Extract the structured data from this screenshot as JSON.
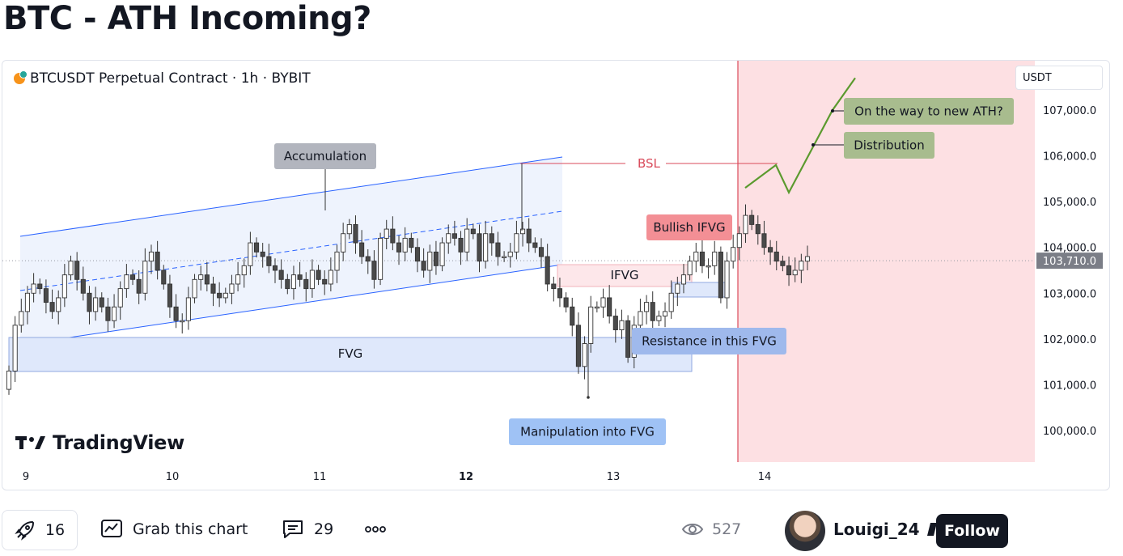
{
  "page": {
    "title": "BTC - ATH Incoming?"
  },
  "chart": {
    "symbol_line": "BTCUSDT Perpetual Contract · 1h · BYBIT",
    "currency": "USDT",
    "logo_text": "TradingView",
    "price_labels": [
      "107,000.0",
      "106,000.0",
      "105,000.0",
      "104,000.0",
      "103,000.0",
      "102,000.0",
      "101,000.0",
      "100,000.0"
    ],
    "current_price": "103,710.0",
    "date_labels": [
      {
        "label": "9",
        "bold": false
      },
      {
        "label": "10",
        "bold": false
      },
      {
        "label": "11",
        "bold": false
      },
      {
        "label": "12",
        "bold": true
      },
      {
        "label": "13",
        "bold": false
      },
      {
        "label": "14",
        "bold": false
      }
    ],
    "annotations": {
      "accumulation": "Accumulation",
      "bsl": "BSL",
      "bullish_ifvg": "Bullish IFVG",
      "ifvg": "IFVG",
      "fvg": "FVG",
      "resistance": "Resistance in this FVG",
      "manipulation": "Manipulation into FVG",
      "on_the_way": "On the way to new ATH?",
      "distribution": "Distribution"
    },
    "colors": {
      "up_candle": "#ffffff",
      "down_candle": "#4a4a4a",
      "channel_line": "#2962ff",
      "projection": "#5b9a2e",
      "future_zone": "#fde0e3",
      "bsl": "#d94a5a"
    }
  },
  "chart_data": {
    "type": "candlestick",
    "title": "BTCUSDT Perpetual Contract · 1h · BYBIT",
    "y_unit": "USDT",
    "ylim": [
      99500,
      108000
    ],
    "x_ticks": [
      "9",
      "10",
      "11",
      "12",
      "13",
      "14"
    ],
    "closes": [
      101300,
      102300,
      102600,
      103000,
      103200,
      103100,
      102800,
      102600,
      102900,
      103400,
      103700,
      103300,
      103000,
      102600,
      102900,
      102700,
      102400,
      102700,
      103100,
      103400,
      103300,
      103000,
      103700,
      103900,
      103500,
      103200,
      102700,
      102400,
      102400,
      102900,
      103300,
      103400,
      103200,
      103000,
      102900,
      103000,
      103200,
      103400,
      103600,
      104100,
      103900,
      103800,
      103600,
      103500,
      103300,
      103100,
      103400,
      103300,
      103100,
      103500,
      103300,
      103200,
      103500,
      103900,
      104300,
      104500,
      104100,
      103800,
      103700,
      103300,
      104200,
      104400,
      104100,
      103900,
      104200,
      104000,
      103700,
      103500,
      103900,
      103600,
      104100,
      104300,
      104200,
      103900,
      104400,
      104300,
      103700,
      104300,
      104100,
      103800,
      103800,
      103900,
      104300,
      104400,
      104100,
      104000,
      103800,
      103200,
      103100,
      102900,
      102700,
      102300,
      101400,
      101900,
      102700,
      102700,
      102900,
      102500,
      102200,
      102400,
      101600,
      102300,
      102600,
      102800,
      102400,
      102500,
      102600,
      103000,
      103200,
      103400,
      103700,
      103900,
      103600,
      103600,
      103900,
      102900,
      103700,
      104000,
      104300,
      104700,
      104500,
      104300,
      104000,
      103900,
      103700,
      103600,
      103400,
      103500,
      103700,
      103800
    ],
    "current_price": 103710,
    "bsl_level": 105800,
    "projection_path": [
      105300,
      105800,
      105200,
      106200,
      107000,
      107700
    ]
  }
}
